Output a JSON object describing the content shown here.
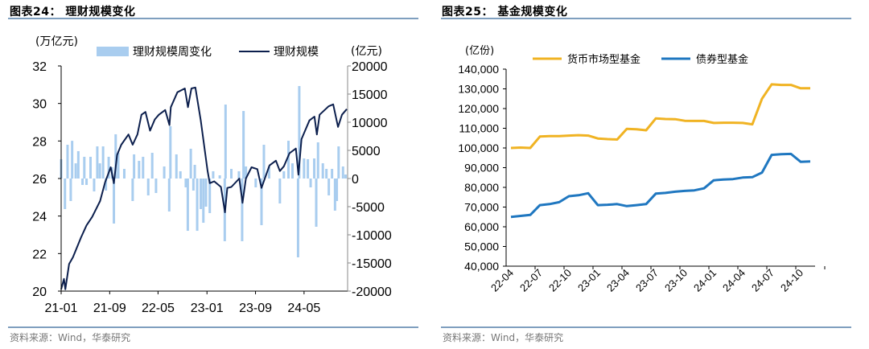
{
  "colors": {
    "bar": "#a9cdef",
    "line_dark": "#0c1f4d",
    "money_market": "#f0b323",
    "bond": "#1f77c0",
    "rule": "#7f9fbf"
  },
  "left_panel": {
    "title": "图表24：  理财规模变化",
    "source": "资料来源：Wind，华泰研究"
  },
  "right_panel": {
    "title": "图表25：  基金规模变化",
    "source": "资料来源：Wind，华泰研究"
  },
  "chart_data": [
    {
      "type": "bar+line",
      "title": "",
      "y_left_unit": "(万亿元)",
      "y_right_unit": "(亿元)",
      "ylim_left": [
        20,
        32
      ],
      "yticks_left": [
        "20",
        "22",
        "24",
        "26",
        "28",
        "30",
        "32"
      ],
      "ylim_right": [
        -20000,
        20000
      ],
      "yticks_right": [
        "-20000",
        "-15000",
        "-10000",
        "-5000",
        "0",
        "5000",
        "10000",
        "15000",
        "20000"
      ],
      "xlim": [
        "2021-01-01",
        "2024-12-05"
      ],
      "xticks": [
        [
          "2021-01-01",
          "21-01"
        ],
        [
          "2021-09-01",
          "21-09"
        ],
        [
          "2022-05-01",
          "22-05"
        ],
        [
          "2023-01-01",
          "23-01"
        ],
        [
          "2023-09-01",
          "23-09"
        ],
        [
          "2024-05-01",
          "24-05"
        ]
      ],
      "grid": false,
      "legend_position": "top",
      "series": [
        {
          "name": "理财规模周变化",
          "kind": "bar",
          "axis": "right",
          "points": [
            [
              "2021-01-01",
              3430
            ],
            [
              "2021-01-20",
              -5430
            ],
            [
              "2021-02-02",
              6000
            ],
            [
              "2021-02-18",
              -4000
            ],
            [
              "2021-02-25",
              6700
            ],
            [
              "2021-03-15",
              2700
            ],
            [
              "2021-03-28",
              4860
            ],
            [
              "2021-04-18",
              -1140
            ],
            [
              "2021-04-27",
              3860
            ],
            [
              "2021-05-08",
              -1140
            ],
            [
              "2021-05-28",
              3860
            ],
            [
              "2021-06-15",
              -2290
            ],
            [
              "2021-07-01",
              5710
            ],
            [
              "2021-07-14",
              2700
            ],
            [
              "2021-07-30",
              5710
            ],
            [
              "2021-08-13",
              -2140
            ],
            [
              "2021-08-27",
              3860
            ],
            [
              "2021-09-13",
              2000
            ],
            [
              "2021-09-22",
              -8000
            ],
            [
              "2021-10-01",
              7860
            ],
            [
              "2021-10-14",
              4570
            ],
            [
              "2021-11-13",
              1710
            ],
            [
              "2021-12-25",
              -4000
            ],
            [
              "2022-01-01",
              4290
            ],
            [
              "2022-01-26",
              3140
            ],
            [
              "2022-02-15",
              3860
            ],
            [
              "2022-03-13",
              -3000
            ],
            [
              "2022-04-02",
              4570
            ],
            [
              "2022-04-21",
              -2570
            ],
            [
              "2022-06-01",
              2140
            ],
            [
              "2022-06-26",
              -5860
            ],
            [
              "2022-07-02",
              9290
            ],
            [
              "2022-08-01",
              4290
            ],
            [
              "2022-08-21",
              1290
            ],
            [
              "2022-09-17",
              -1570
            ],
            [
              "2022-09-27",
              -9290
            ],
            [
              "2022-10-12",
              5290
            ],
            [
              "2022-10-25",
              -2140
            ],
            [
              "2022-11-01",
              2430
            ],
            [
              "2022-11-13",
              -9290
            ],
            [
              "2022-12-01",
              -5430
            ],
            [
              "2022-12-14",
              -7860
            ],
            [
              "2022-12-27",
              -5000
            ],
            [
              "2023-01-15",
              -6140
            ],
            [
              "2023-02-01",
              1290
            ],
            [
              "2023-03-06",
              570
            ],
            [
              "2023-03-31",
              -11140
            ],
            [
              "2023-04-04",
              13140
            ],
            [
              "2023-05-03",
              1710
            ],
            [
              "2023-06-10",
              1290
            ],
            [
              "2023-06-26",
              -11140
            ],
            [
              "2023-07-03",
              12000
            ],
            [
              "2023-07-15",
              2140
            ],
            [
              "2023-09-02",
              -1570
            ],
            [
              "2023-10-01",
              -8290
            ],
            [
              "2023-10-13",
              6000
            ],
            [
              "2023-11-08",
              2140
            ],
            [
              "2024-01-01",
              -4430
            ],
            [
              "2024-01-21",
              1290
            ],
            [
              "2024-02-13",
              6710
            ],
            [
              "2024-03-04",
              2700
            ],
            [
              "2024-04-01",
              -14000
            ],
            [
              "2024-04-07",
              16430
            ],
            [
              "2024-05-01",
              3570
            ],
            [
              "2024-05-20",
              3430
            ],
            [
              "2024-06-03",
              -1570
            ],
            [
              "2024-06-21",
              3570
            ],
            [
              "2024-07-01",
              -8570
            ],
            [
              "2024-07-10",
              6430
            ],
            [
              "2024-08-03",
              2710
            ],
            [
              "2024-08-21",
              1710
            ],
            [
              "2024-09-02",
              -3000
            ],
            [
              "2024-09-18",
              1710
            ],
            [
              "2024-10-03",
              -5710
            ],
            [
              "2024-10-12",
              -4000
            ],
            [
              "2024-10-21",
              5710
            ],
            [
              "2024-11-12",
              2140
            ],
            [
              "2024-11-25",
              710
            ]
          ]
        },
        {
          "name": "理财规模",
          "kind": "line",
          "axis": "left",
          "points": [
            [
              "2021-01-01",
              20.1
            ],
            [
              "2021-01-15",
              20.65
            ],
            [
              "2021-01-22",
              20.1
            ],
            [
              "2021-02-10",
              21.45
            ],
            [
              "2021-03-01",
              21.8
            ],
            [
              "2021-04-10",
              22.85
            ],
            [
              "2021-05-08",
              23.5
            ],
            [
              "2021-06-05",
              23.95
            ],
            [
              "2021-07-15",
              24.8
            ],
            [
              "2021-08-09",
              25.8
            ],
            [
              "2021-09-06",
              26.6
            ],
            [
              "2021-09-22",
              25.75
            ],
            [
              "2021-10-08",
              27.25
            ],
            [
              "2021-10-29",
              27.8
            ],
            [
              "2021-12-04",
              28.35
            ],
            [
              "2021-12-25",
              27.8
            ],
            [
              "2022-01-18",
              28.35
            ],
            [
              "2022-02-07",
              29.4
            ],
            [
              "2022-02-27",
              29.55
            ],
            [
              "2022-03-22",
              28.55
            ],
            [
              "2022-04-15",
              29.15
            ],
            [
              "2022-05-05",
              29.4
            ],
            [
              "2022-06-06",
              29.65
            ],
            [
              "2022-06-27",
              28.85
            ],
            [
              "2022-07-04",
              29.8
            ],
            [
              "2022-08-06",
              30.6
            ],
            [
              "2022-09-12",
              30.8
            ],
            [
              "2022-09-28",
              29.8
            ],
            [
              "2022-10-15",
              30.8
            ],
            [
              "2022-11-04",
              30.85
            ],
            [
              "2022-12-01",
              29.1
            ],
            [
              "2023-01-04",
              26.4
            ],
            [
              "2023-01-15",
              25.75
            ],
            [
              "2023-02-06",
              25.85
            ],
            [
              "2023-03-12",
              25.55
            ],
            [
              "2023-04-01",
              24.2
            ],
            [
              "2023-04-13",
              25.5
            ],
            [
              "2023-05-03",
              25.55
            ],
            [
              "2023-06-12",
              26.0
            ],
            [
              "2023-06-28",
              24.7
            ],
            [
              "2023-07-15",
              26.0
            ],
            [
              "2023-08-12",
              26.6
            ],
            [
              "2023-09-10",
              26.5
            ],
            [
              "2023-10-01",
              25.5
            ],
            [
              "2023-11-10",
              26.7
            ],
            [
              "2023-12-12",
              26.95
            ],
            [
              "2024-01-01",
              26.4
            ],
            [
              "2024-01-21",
              26.65
            ],
            [
              "2024-02-18",
              27.35
            ],
            [
              "2024-03-21",
              27.6
            ],
            [
              "2024-04-03",
              26.2
            ],
            [
              "2024-04-18",
              28.1
            ],
            [
              "2024-05-28",
              29.1
            ],
            [
              "2024-06-22",
              29.3
            ],
            [
              "2024-07-04",
              28.35
            ],
            [
              "2024-07-18",
              29.4
            ],
            [
              "2024-09-01",
              29.85
            ],
            [
              "2024-09-24",
              29.95
            ],
            [
              "2024-10-18",
              28.75
            ],
            [
              "2024-11-07",
              29.4
            ],
            [
              "2024-12-01",
              29.7
            ]
          ]
        }
      ]
    },
    {
      "type": "line",
      "title": "",
      "y_unit": "(亿份)",
      "ylim": [
        40000,
        140000
      ],
      "yticks": [
        "40,000",
        "50,000",
        "60,000",
        "70,000",
        "80,000",
        "90,000",
        "100,000",
        "110,000",
        "120,000",
        "130,000",
        "140,000"
      ],
      "categories": [
        "22-04",
        "22-05",
        "22-06",
        "22-07",
        "22-08",
        "22-09",
        "22-10",
        "22-11",
        "22-12",
        "23-01",
        "23-02",
        "23-03",
        "23-04",
        "23-05",
        "23-06",
        "23-07",
        "23-08",
        "23-09",
        "23-10",
        "23-11",
        "23-12",
        "24-01",
        "24-02",
        "24-03",
        "24-04",
        "24-05",
        "24-06",
        "24-07",
        "24-08",
        "24-09",
        "24-10",
        "24-11"
      ],
      "xtick_labels": [
        "22-04",
        "22-07",
        "22-10",
        "23-01",
        "23-04",
        "23-07",
        "23-10",
        "24-01",
        "24-04",
        "24-07",
        "24-10"
      ],
      "grid": false,
      "legend_position": "top",
      "series": [
        {
          "name": "货币市场型基金",
          "values": [
            100000,
            100200,
            100000,
            105800,
            106000,
            106000,
            106300,
            106500,
            106300,
            104800,
            104500,
            104300,
            109700,
            109500,
            109000,
            115000,
            114700,
            114600,
            113800,
            113700,
            113700,
            112700,
            112800,
            112800,
            112700,
            112000,
            125000,
            132300,
            132000,
            132000,
            130300,
            130300
          ]
        },
        {
          "name": "债券型基金",
          "values": [
            65000,
            65500,
            66000,
            71000,
            71500,
            72500,
            75500,
            76000,
            77000,
            71000,
            71200,
            71500,
            70500,
            71000,
            71500,
            76800,
            77200,
            77800,
            78200,
            78500,
            79500,
            83600,
            84000,
            84200,
            85000,
            85200,
            87500,
            96500,
            96800,
            97000,
            93000,
            93200
          ]
        }
      ]
    }
  ]
}
